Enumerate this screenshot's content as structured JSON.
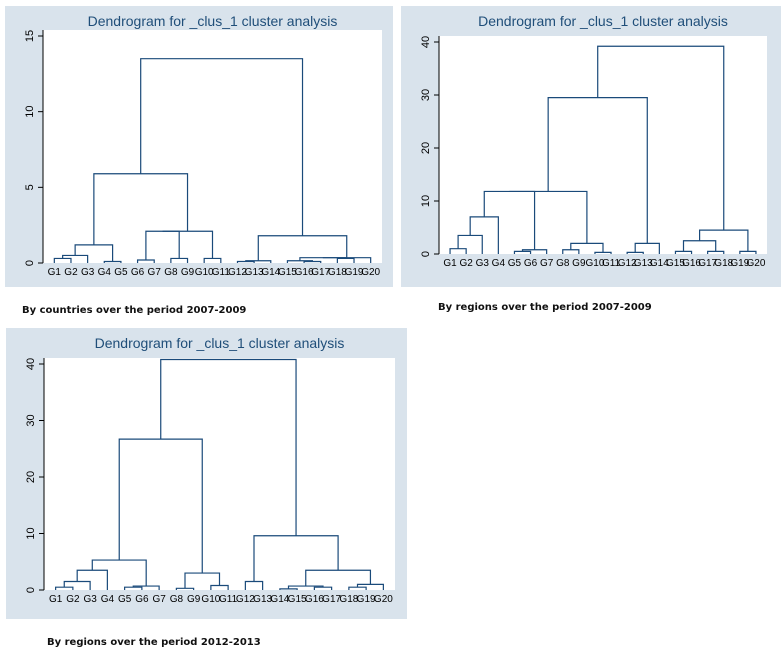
{
  "colors": {
    "frame": "#d9e3ec",
    "plot": "#ffffff",
    "line": "#1a4a7a",
    "title": "#1f4e79",
    "axis": "#000000"
  },
  "chart_data": [
    {
      "type": "dendrogram",
      "title": "Dendrogram for _clus_1 cluster analysis",
      "caption": "By countries over the period 2007-2009",
      "leaves": [
        "G1",
        "G2",
        "G3",
        "G4",
        "G5",
        "G6",
        "G7",
        "G8",
        "G9",
        "G10",
        "G11",
        "G12",
        "G13",
        "G14",
        "G15",
        "G16",
        "G17",
        "G18",
        "G19",
        "G20"
      ],
      "ylim": [
        0,
        15
      ],
      "yticks": [
        0,
        5,
        10,
        15
      ],
      "merges": [
        [
          1,
          2,
          0.3
        ],
        [
          21,
          3,
          0.5
        ],
        [
          4,
          5,
          0.1
        ],
        [
          22,
          23,
          1.2
        ],
        [
          6,
          7,
          0.2
        ],
        [
          8,
          9,
          0.3
        ],
        [
          25,
          26,
          2.1
        ],
        [
          10,
          11,
          0.3
        ],
        [
          27,
          28,
          2.1
        ],
        [
          24,
          29,
          5.9
        ],
        [
          12,
          13,
          0.1
        ],
        [
          31,
          14,
          0.15
        ],
        [
          16,
          17,
          0.1
        ],
        [
          15,
          33,
          0.15
        ],
        [
          18,
          19,
          0.3
        ],
        [
          34,
          35,
          0.35
        ],
        [
          20,
          36,
          0.35
        ],
        [
          32,
          37,
          1.8
        ],
        [
          30,
          38,
          13.5
        ]
      ]
    },
    {
      "type": "dendrogram",
      "title": "Dendrogram for _clus_1 cluster analysis",
      "caption": "By regions over the period 2007-2009",
      "leaves": [
        "G1",
        "G2",
        "G3",
        "G4",
        "G5",
        "G6",
        "G7",
        "G8",
        "G9",
        "G10",
        "G11",
        "G12",
        "G13",
        "G14",
        "G15",
        "G16",
        "G17",
        "G18",
        "G19",
        "G20"
      ],
      "ylim": [
        0,
        40
      ],
      "yticks": [
        0,
        10,
        20,
        30,
        40
      ],
      "merges": [
        [
          1,
          2,
          1
        ],
        [
          21,
          3,
          3.5
        ],
        [
          22,
          4,
          7
        ],
        [
          5,
          6,
          0.5
        ],
        [
          24,
          7,
          0.8
        ],
        [
          23,
          25,
          11.8
        ],
        [
          8,
          9,
          0.8
        ],
        [
          10,
          11,
          0.3
        ],
        [
          27,
          28,
          2
        ],
        [
          26,
          29,
          11.8
        ],
        [
          12,
          13,
          0.3
        ],
        [
          31,
          14,
          2
        ],
        [
          30,
          32,
          29.5
        ],
        [
          15,
          16,
          0.5
        ],
        [
          17,
          18,
          0.5
        ],
        [
          34,
          35,
          2.5
        ],
        [
          19,
          20,
          0.5
        ],
        [
          36,
          37,
          4.5
        ],
        [
          33,
          38,
          39.2
        ]
      ]
    },
    {
      "type": "dendrogram",
      "title": "Dendrogram for _clus_1 cluster analysis",
      "caption": "By regions over the period 2012-2013",
      "leaves": [
        "G1",
        "G2",
        "G3",
        "G4",
        "G5",
        "G6",
        "G7",
        "G8",
        "G9",
        "G10",
        "G11",
        "G12",
        "G13",
        "G14",
        "G15",
        "G16",
        "G17",
        "G18",
        "G19",
        "G20"
      ],
      "ylim": [
        0,
        40
      ],
      "yticks": [
        0,
        10,
        20,
        30,
        40
      ],
      "merges": [
        [
          1,
          2,
          0.5
        ],
        [
          21,
          3,
          1.5
        ],
        [
          22,
          4,
          3.5
        ],
        [
          5,
          6,
          0.5
        ],
        [
          24,
          7,
          0.7
        ],
        [
          23,
          25,
          5.3
        ],
        [
          8,
          9,
          0.3
        ],
        [
          10,
          11,
          0.8
        ],
        [
          27,
          28,
          3
        ],
        [
          26,
          29,
          26.7
        ],
        [
          12,
          13,
          1.5
        ],
        [
          14,
          15,
          0.2
        ],
        [
          16,
          17,
          0.5
        ],
        [
          32,
          33,
          0.7
        ],
        [
          18,
          19,
          0.5
        ],
        [
          35,
          20,
          1
        ],
        [
          34,
          36,
          3.5
        ],
        [
          31,
          37,
          9.6
        ],
        [
          30,
          38,
          40.8
        ]
      ]
    }
  ]
}
